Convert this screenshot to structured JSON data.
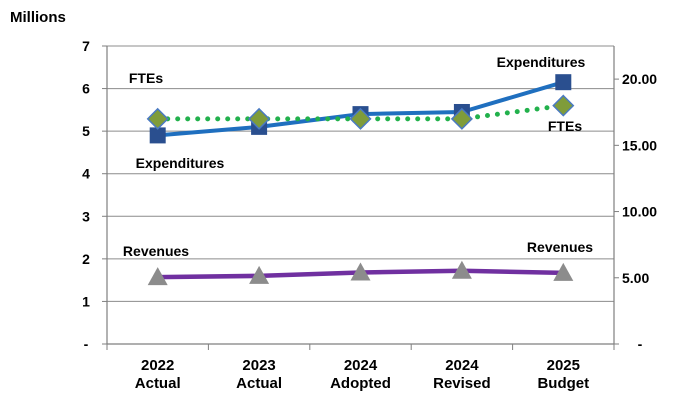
{
  "chart_data": {
    "type": "line",
    "ylabel": "Millions",
    "categories": [
      [
        "2022",
        "Actual"
      ],
      [
        "2023",
        "Actual"
      ],
      [
        "2024",
        "Adopted"
      ],
      [
        "2024",
        "Revised"
      ],
      [
        "2025",
        "Budget"
      ]
    ],
    "y_left": {
      "min": 0,
      "max": 7,
      "ticks": [
        {
          "value": 0,
          "label": "-"
        },
        {
          "value": 1,
          "label": "1"
        },
        {
          "value": 2,
          "label": "2"
        },
        {
          "value": 3,
          "label": "3"
        },
        {
          "value": 4,
          "label": "4"
        },
        {
          "value": 5,
          "label": "5"
        },
        {
          "value": 6,
          "label": "6"
        },
        {
          "value": 7,
          "label": "7"
        }
      ]
    },
    "y_right": {
      "min": 0,
      "max": 22.5,
      "ticks": [
        {
          "value": 0,
          "label": "-"
        },
        {
          "value": 5,
          "label": "5.00"
        },
        {
          "value": 10,
          "label": "10.00"
        },
        {
          "value": 15,
          "label": "15.00"
        },
        {
          "value": 20,
          "label": "20.00"
        }
      ]
    },
    "grid": true,
    "series": [
      {
        "name": "Expenditures",
        "axis": "left",
        "values": [
          4.9,
          5.1,
          5.4,
          5.45,
          6.15
        ],
        "color": "#1f6fbf",
        "marker": "square",
        "marker_color": "#2a4f8f",
        "line_style": "solid",
        "labels": [
          "Expenditures",
          "Expenditures"
        ]
      },
      {
        "name": "FTEs",
        "axis": "right",
        "values": [
          17.0,
          17.0,
          17.0,
          17.0,
          18.0
        ],
        "color": "#22b14c",
        "marker": "diamond",
        "marker_color": "#7f9c3a",
        "line_style": "dotted",
        "labels": [
          "FTEs",
          "FTEs"
        ]
      },
      {
        "name": "Revenues",
        "axis": "left",
        "values": [
          1.57,
          1.6,
          1.68,
          1.72,
          1.67
        ],
        "color": "#7030a0",
        "marker": "triangle",
        "marker_color": "#8c8c8c",
        "line_style": "solid",
        "labels": [
          "Revenues",
          "Revenues"
        ]
      }
    ]
  }
}
